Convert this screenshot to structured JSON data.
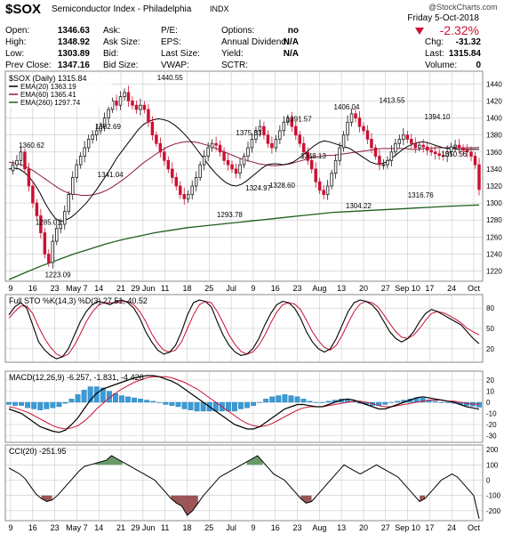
{
  "header": {
    "symbol": "$SOX",
    "name": "Semiconductor Index - Philadelphia",
    "exchange": "INDX",
    "watermark": "@StockCharts.com",
    "date": "Friday 5-Oct-2018",
    "change_pct": "-2.32%",
    "quote_left": [
      {
        "label": "Open:",
        "value": "1346.63"
      },
      {
        "label": "High:",
        "value": "1348.92"
      },
      {
        "label": "Low:",
        "value": "1303.89"
      },
      {
        "label": "Prev Close:",
        "value": "1347.16"
      }
    ],
    "quote_mid": [
      "Ask:",
      "Ask Size:",
      "Bid:",
      "Bid Size:"
    ],
    "quote_fund": [
      {
        "label": "P/E:",
        "value": ""
      },
      {
        "label": "EPS:",
        "value": ""
      },
      {
        "label": "Last Size:",
        "value": ""
      },
      {
        "label": "VWAP:",
        "value": ""
      }
    ],
    "quote_opts": [
      {
        "label": "Options:",
        "value": "no"
      },
      {
        "label": "Annual Dividend:",
        "value": "N/A"
      },
      {
        "label": "Yield:",
        "value": "N/A"
      },
      {
        "label": "SCTR:",
        "value": ""
      }
    ],
    "quote_right": [
      {
        "label": "Chg:",
        "value": "-31.32"
      },
      {
        "label": "Last:",
        "value": "1315.84"
      },
      {
        "label": "Volume:",
        "value": "0"
      }
    ]
  },
  "colors": {
    "up": "#1a1a1a",
    "down": "#cc1133",
    "ema20": "#000000",
    "ema60": "#8b1a3a",
    "ema260": "#1f5e1f",
    "macd_hist": "#3a9ad6",
    "cci_pos": "#4f8a4f",
    "cci_neg": "#8a3a3a",
    "grid": "#c8c8c8"
  },
  "chart_data": [
    {
      "type": "candlestick",
      "title": "$SOX (Daily) 1315.84",
      "legend": [
        "EMA(20) 1363.19",
        "EMA(60) 1365.41",
        "EMA(260) 1297.74"
      ],
      "x_labels": [
        "9",
        "16",
        "23",
        "May 7",
        "14",
        "21",
        "29 Jun",
        "11",
        "18",
        "25",
        "Jul",
        "9",
        "16",
        "23",
        "Aug",
        "13",
        "20",
        "27",
        "Sep 10",
        "17",
        "24",
        "Oct"
      ],
      "y_ticks": [
        1220,
        1240,
        1260,
        1280,
        1300,
        1320,
        1340,
        1360,
        1380,
        1400,
        1420,
        1440
      ],
      "ylim": [
        1208,
        1455
      ],
      "annotations": [
        {
          "label": "1360.62",
          "value": 1360.62
        },
        {
          "label": "1285.01",
          "value": 1285.01
        },
        {
          "label": "1223.09",
          "value": 1223.09
        },
        {
          "label": "1382.69",
          "value": 1382.69
        },
        {
          "label": "1341.04",
          "value": 1341.04
        },
        {
          "label": "1440.55",
          "value": 1440.55
        },
        {
          "label": "1375.33",
          "value": 1375.33
        },
        {
          "label": "1324.97",
          "value": 1324.97
        },
        {
          "label": "1293.78",
          "value": 1293.78
        },
        {
          "label": "1391.57",
          "value": 1391.57
        },
        {
          "label": "1328.60",
          "value": 1328.6
        },
        {
          "label": "1348.13",
          "value": 1348.13
        },
        {
          "label": "1406.04",
          "value": 1406.04
        },
        {
          "label": "1304.22",
          "value": 1304.22
        },
        {
          "label": "1413.55",
          "value": 1413.55
        },
        {
          "label": "1394.10",
          "value": 1394.1
        },
        {
          "label": "1316.76",
          "value": 1316.76
        },
        {
          "label": "1350.56",
          "value": 1350.56
        }
      ],
      "close_path": [
        1338,
        1345,
        1350,
        1360,
        1340,
        1320,
        1300,
        1285,
        1265,
        1240,
        1230,
        1255,
        1270,
        1275,
        1290,
        1310,
        1330,
        1345,
        1355,
        1365,
        1375,
        1380,
        1385,
        1390,
        1400,
        1410,
        1420,
        1415,
        1425,
        1430,
        1420,
        1415,
        1410,
        1415,
        1410,
        1395,
        1380,
        1370,
        1360,
        1350,
        1340,
        1330,
        1320,
        1310,
        1305,
        1310,
        1320,
        1330,
        1345,
        1355,
        1365,
        1370,
        1368,
        1360,
        1350,
        1345,
        1340,
        1335,
        1345,
        1355,
        1365,
        1375,
        1385,
        1390,
        1380,
        1370,
        1365,
        1375,
        1385,
        1395,
        1400,
        1390,
        1380,
        1370,
        1360,
        1350,
        1340,
        1325,
        1315,
        1310,
        1320,
        1335,
        1350,
        1365,
        1380,
        1395,
        1405,
        1400,
        1390,
        1385,
        1375,
        1365,
        1355,
        1345,
        1345,
        1350,
        1360,
        1370,
        1375,
        1380,
        1375,
        1370,
        1365,
        1368,
        1366,
        1362,
        1360,
        1358,
        1356,
        1355,
        1360,
        1366,
        1368,
        1365,
        1362,
        1360,
        1355,
        1345,
        1315.84
      ],
      "ema20_path": [
        1340,
        1341,
        1340,
        1336,
        1330,
        1322,
        1312,
        1300,
        1290,
        1282,
        1278,
        1280,
        1283,
        1288,
        1294,
        1300,
        1308,
        1316,
        1325,
        1334,
        1344,
        1354,
        1362,
        1370,
        1378,
        1386,
        1392,
        1396,
        1398,
        1399,
        1398,
        1396,
        1392,
        1387,
        1381,
        1374,
        1366,
        1358,
        1350,
        1342,
        1335,
        1329,
        1324,
        1321,
        1320,
        1322,
        1326,
        1331,
        1336,
        1341,
        1345,
        1346,
        1346,
        1345,
        1346,
        1348,
        1352,
        1357,
        1362,
        1367,
        1371,
        1373,
        1372,
        1370,
        1368,
        1366,
        1364,
        1360,
        1356,
        1352,
        1348,
        1346,
        1346,
        1348,
        1352,
        1357,
        1362,
        1366,
        1369,
        1371,
        1372,
        1371,
        1369,
        1367,
        1365,
        1364,
        1364,
        1363,
        1363,
        1363,
        1363,
        1363.19
      ],
      "ema60_path": [
        1348,
        1347,
        1345,
        1342,
        1338,
        1333,
        1328,
        1323,
        1318,
        1314,
        1311,
        1310,
        1309,
        1309,
        1310,
        1312,
        1315,
        1319,
        1324,
        1329,
        1335,
        1341,
        1347,
        1352,
        1357,
        1362,
        1366,
        1369,
        1371,
        1372,
        1372,
        1371,
        1369,
        1367,
        1364,
        1361,
        1358,
        1355,
        1352,
        1350,
        1348,
        1346,
        1345,
        1344,
        1344,
        1345,
        1346,
        1348,
        1350,
        1352,
        1354,
        1355,
        1356,
        1356,
        1357,
        1358,
        1359,
        1360,
        1361,
        1362,
        1363,
        1364,
        1364,
        1364,
        1364,
        1364,
        1363,
        1363,
        1364,
        1364,
        1365,
        1365,
        1365,
        1365,
        1365,
        1365,
        1365,
        1365.41
      ],
      "ema260_path": [
        1210,
        1218,
        1226,
        1233,
        1240,
        1246,
        1252,
        1257,
        1261,
        1265,
        1268,
        1271,
        1273,
        1275,
        1277,
        1279,
        1281,
        1283,
        1285,
        1287,
        1289,
        1290,
        1291,
        1292,
        1293,
        1294,
        1295,
        1296,
        1297,
        1297.74
      ]
    },
    {
      "type": "line",
      "title": "Full STO %K(14,3) %D(3) 27.51, 40.52",
      "y_ticks": [
        20,
        50,
        80
      ],
      "ylim": [
        0,
        100
      ],
      "k_path": [
        70,
        82,
        88,
        80,
        55,
        30,
        18,
        10,
        5,
        8,
        20,
        40,
        60,
        75,
        85,
        90,
        88,
        85,
        90,
        92,
        88,
        80,
        65,
        45,
        30,
        18,
        12,
        15,
        25,
        45,
        70,
        88,
        92,
        90,
        82,
        60,
        40,
        25,
        15,
        10,
        12,
        20,
        35,
        55,
        72,
        85,
        90,
        88,
        80,
        65,
        45,
        30,
        20,
        15,
        20,
        35,
        55,
        75,
        88,
        92,
        90,
        85,
        75,
        60,
        45,
        35,
        30,
        35,
        45,
        60,
        72,
        78,
        75,
        70,
        65,
        60,
        55,
        45,
        35,
        27.51
      ],
      "d_path": [
        65,
        75,
        83,
        83,
        72,
        52,
        35,
        22,
        12,
        8,
        12,
        25,
        42,
        60,
        74,
        84,
        88,
        88,
        88,
        90,
        90,
        85,
        75,
        60,
        42,
        28,
        18,
        15,
        18,
        30,
        50,
        70,
        85,
        90,
        88,
        75,
        58,
        40,
        26,
        16,
        12,
        15,
        25,
        40,
        58,
        74,
        85,
        88,
        86,
        78,
        62,
        45,
        32,
        22,
        18,
        25,
        40,
        58,
        75,
        86,
        90,
        88,
        82,
        70,
        57,
        45,
        37,
        35,
        40,
        50,
        62,
        72,
        75,
        73,
        69,
        64,
        58,
        50,
        45,
        40.52
      ]
    },
    {
      "type": "line",
      "title": "MACD(12,26,9) -6.257, -1.831, -4.426",
      "y_ticks": [
        -30,
        -20,
        -10,
        0,
        10,
        20
      ],
      "ylim": [
        -36,
        28
      ],
      "macd_path": [
        -6,
        -8,
        -10,
        -14,
        -18,
        -22,
        -24,
        -26,
        -27,
        -25,
        -20,
        -14,
        -6,
        2,
        8,
        12,
        14,
        16,
        18,
        20,
        22,
        23,
        24,
        24,
        23,
        21,
        19,
        16,
        12,
        8,
        4,
        0,
        -4,
        -8,
        -12,
        -16,
        -20,
        -22,
        -24,
        -24,
        -22,
        -18,
        -14,
        -10,
        -6,
        -4,
        -2,
        -2,
        -3,
        -4,
        -4,
        -2,
        0,
        2,
        3,
        2,
        0,
        -2,
        -4,
        -6,
        -6,
        -4,
        -2,
        0,
        2,
        4,
        5,
        4,
        3,
        2,
        1,
        0,
        -2,
        -4,
        -5,
        -6.257
      ],
      "signal_path": [
        -4,
        -5,
        -7,
        -9,
        -12,
        -15,
        -18,
        -21,
        -23,
        -24,
        -23,
        -21,
        -17,
        -12,
        -6,
        -1,
        4,
        8,
        12,
        15,
        18,
        20,
        22,
        23,
        23,
        23,
        22,
        20,
        18,
        15,
        12,
        8,
        4,
        0,
        -4,
        -8,
        -12,
        -16,
        -19,
        -21,
        -22,
        -21,
        -19,
        -16,
        -13,
        -10,
        -7,
        -5,
        -4,
        -4,
        -4,
        -3,
        -2,
        -1,
        0,
        1,
        1,
        0,
        -1,
        -3,
        -4,
        -4,
        -3,
        -2,
        -1,
        0,
        1,
        2,
        2,
        2,
        1,
        1,
        0,
        -1,
        -1.5,
        -1.831
      ],
      "hist_path": [
        -2,
        -3,
        -3,
        -5,
        -6,
        -7,
        -6,
        -5,
        -4,
        -1,
        3,
        7,
        11,
        14,
        14,
        13,
        10,
        8,
        6,
        5,
        4,
        3,
        2,
        1,
        0,
        -2,
        -3,
        -4,
        -6,
        -7,
        -8,
        -8,
        -8,
        -8,
        -8,
        -8,
        -8,
        -6,
        -5,
        -3,
        0,
        3,
        5,
        6,
        7,
        6,
        5,
        3,
        1,
        0,
        0,
        1,
        2,
        3,
        3,
        1,
        -1,
        -2,
        -3,
        -3,
        -2,
        0,
        1,
        2,
        3,
        4,
        4,
        2,
        1,
        0,
        0,
        -1,
        -2,
        -3,
        -3.5,
        -4.426
      ]
    },
    {
      "type": "line",
      "title": "CCI(20) -251.95",
      "y_ticks": [
        -200,
        -100,
        0,
        100,
        200
      ],
      "ylim": [
        -265,
        230
      ],
      "cci_path": [
        80,
        60,
        40,
        10,
        -40,
        -90,
        -120,
        -140,
        -130,
        -100,
        -60,
        -20,
        20,
        60,
        90,
        100,
        110,
        120,
        130,
        160,
        140,
        120,
        100,
        80,
        60,
        40,
        20,
        0,
        -40,
        -80,
        -120,
        -150,
        -170,
        -230,
        -200,
        -150,
        -100,
        -60,
        -20,
        20,
        40,
        60,
        80,
        100,
        120,
        140,
        160,
        120,
        80,
        40,
        20,
        0,
        -40,
        -80,
        -120,
        -150,
        -140,
        -100,
        -60,
        -20,
        20,
        60,
        100,
        80,
        60,
        40,
        60,
        80,
        100,
        80,
        60,
        40,
        20,
        -20,
        -60,
        -100,
        -140,
        -120,
        -80,
        -40,
        0,
        20,
        40,
        20,
        -20,
        -60,
        -100,
        -251.95
      ]
    }
  ]
}
